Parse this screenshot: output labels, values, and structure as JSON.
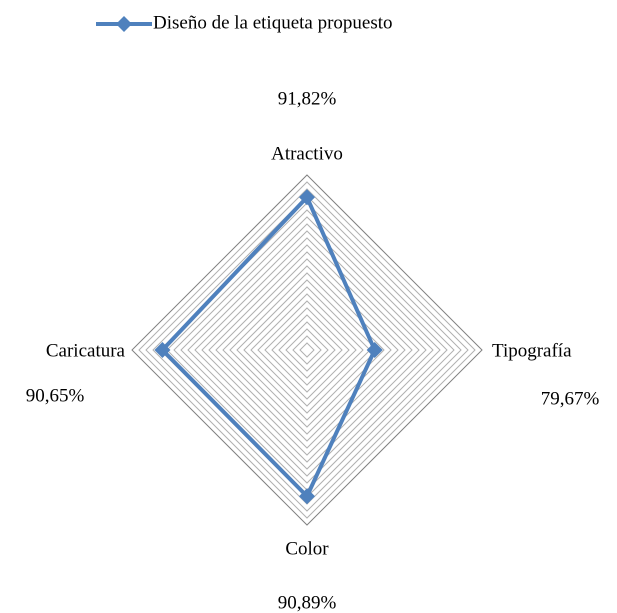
{
  "chart_data": {
    "type": "radar",
    "categories": [
      "Atractivo",
      "Tipografía",
      "Color",
      "Caricatura"
    ],
    "series": [
      {
        "name": "Diseño de la etiqueta propuesto",
        "color": "#4f81bd",
        "values": [
          91.82,
          79.67,
          90.89,
          90.65
        ],
        "value_labels": [
          "91,82%",
          "79,67%",
          "90,89%",
          "90,65%"
        ]
      }
    ],
    "ylim": [
      70,
      95
    ],
    "yticks": [
      70,
      71,
      72,
      73,
      74,
      75,
      76,
      77,
      78,
      79,
      80,
      81,
      82,
      83,
      84,
      85,
      86,
      87,
      88,
      89,
      90,
      91,
      92,
      93,
      94,
      95
    ],
    "grid": true,
    "legend": "top"
  }
}
